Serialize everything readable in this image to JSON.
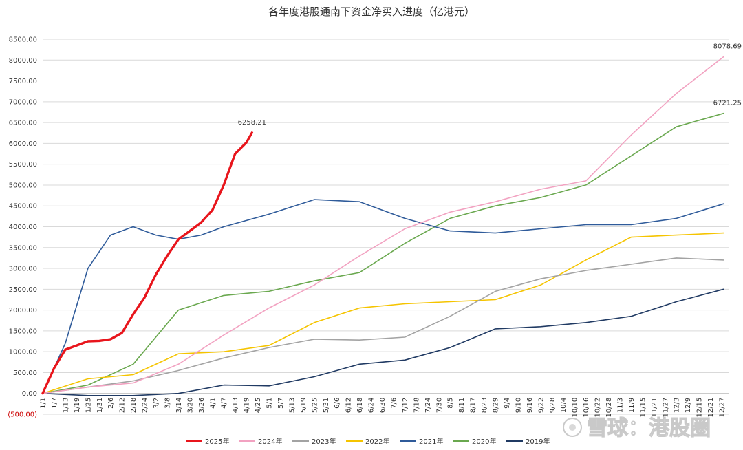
{
  "chart_data": {
    "type": "line",
    "title": "各年度港股通南下资金净买入进度（亿港元）",
    "xlabel": "",
    "ylabel": "",
    "ylim": [
      -500,
      8500
    ],
    "yticks": [
      "(500.00)",
      "0.00",
      "500.00",
      "1000.00",
      "1500.00",
      "2000.00",
      "2500.00",
      "3000.00",
      "3500.00",
      "4000.00",
      "4500.00",
      "5000.00",
      "5500.00",
      "6000.00",
      "6500.00",
      "7000.00",
      "7500.00",
      "8000.00",
      "8500.00"
    ],
    "ytick_values": [
      -500,
      0,
      500,
      1000,
      1500,
      2000,
      2500,
      3000,
      3500,
      4000,
      4500,
      5000,
      5500,
      6000,
      6500,
      7000,
      7500,
      8000,
      8500
    ],
    "xticks": [
      "1/1",
      "1/7",
      "1/13",
      "1/19",
      "1/25",
      "1/31",
      "2/6",
      "2/12",
      "2/18",
      "2/24",
      "3/2",
      "3/8",
      "3/14",
      "3/20",
      "3/26",
      "4/1",
      "4/7",
      "4/13",
      "4/19",
      "4/25",
      "5/1",
      "5/7",
      "5/13",
      "5/19",
      "5/25",
      "5/31",
      "6/6",
      "6/12",
      "6/18",
      "6/24",
      "6/30",
      "7/6",
      "7/12",
      "7/18",
      "7/24",
      "7/30",
      "8/5",
      "8/11",
      "8/17",
      "8/23",
      "8/29",
      "9/4",
      "9/10",
      "9/16",
      "9/22",
      "9/28",
      "10/4",
      "10/10",
      "10/16",
      "10/22",
      "10/28",
      "11/3",
      "11/9",
      "11/15",
      "11/21",
      "11/27",
      "12/3",
      "12/9",
      "12/15",
      "12/21",
      "12/27"
    ],
    "grid": true,
    "legend_position": "bottom",
    "series": [
      {
        "name": "2025年",
        "color": "#e8151c",
        "x": [
          1,
          7,
          13,
          19,
          25,
          31,
          37,
          43,
          49,
          55,
          61,
          67,
          73,
          79,
          85,
          91,
          97,
          103,
          109,
          112
        ],
        "values": [
          0,
          600,
          1050,
          1150,
          1250,
          1260,
          1300,
          1450,
          1900,
          2300,
          2850,
          3300,
          3700,
          3900,
          4100,
          4400,
          5000,
          5750,
          6020,
          6258.21
        ],
        "end_label": "6258.21"
      },
      {
        "name": "2024年",
        "color": "#f2a2c1",
        "x": [
          1,
          25,
          49,
          73,
          97,
          121,
          145,
          169,
          193,
          217,
          241,
          265,
          289,
          313,
          337,
          362
        ],
        "values": [
          0,
          150,
          250,
          700,
          1400,
          2050,
          2600,
          3300,
          3950,
          4350,
          4600,
          4900,
          5100,
          6200,
          7200,
          8078.69
        ],
        "end_label": "8078.69"
      },
      {
        "name": "2023年",
        "color": "#a3a3a3",
        "x": [
          1,
          25,
          49,
          73,
          97,
          121,
          145,
          169,
          193,
          217,
          241,
          265,
          289,
          313,
          337,
          362
        ],
        "values": [
          0,
          150,
          300,
          550,
          850,
          1100,
          1300,
          1280,
          1350,
          1850,
          2450,
          2750,
          2950,
          3100,
          3250,
          3200
        ]
      },
      {
        "name": "2022年",
        "color": "#f5c400",
        "x": [
          1,
          25,
          49,
          73,
          97,
          121,
          145,
          169,
          193,
          217,
          241,
          265,
          289,
          313,
          337,
          362
        ],
        "values": [
          0,
          350,
          450,
          950,
          1000,
          1150,
          1700,
          2050,
          2150,
          2200,
          2250,
          2600,
          3200,
          3750,
          3800,
          3850
        ]
      },
      {
        "name": "2021年",
        "color": "#2f5b9a",
        "x": [
          1,
          13,
          25,
          37,
          49,
          61,
          73,
          85,
          97,
          121,
          145,
          169,
          193,
          217,
          241,
          265,
          289,
          313,
          337,
          362
        ],
        "values": [
          0,
          1200,
          3000,
          3800,
          4000,
          3800,
          3700,
          3800,
          4000,
          4300,
          4650,
          4600,
          4200,
          3900,
          3850,
          3950,
          4050,
          4050,
          4200,
          4550
        ]
      },
      {
        "name": "2020年",
        "color": "#6aa84f",
        "x": [
          1,
          25,
          49,
          73,
          97,
          121,
          145,
          169,
          193,
          217,
          241,
          265,
          289,
          313,
          337,
          362
        ],
        "values": [
          0,
          200,
          700,
          2000,
          2350,
          2450,
          2700,
          2900,
          3600,
          4200,
          4500,
          4700,
          5000,
          5700,
          6400,
          6721.25
        ],
        "end_label": "6721.25"
      },
      {
        "name": "2019年",
        "color": "#203a63",
        "x": [
          1,
          25,
          49,
          73,
          97,
          121,
          145,
          169,
          193,
          217,
          241,
          265,
          289,
          313,
          337,
          362
        ],
        "values": [
          0,
          -50,
          -50,
          0,
          200,
          180,
          400,
          700,
          800,
          1100,
          1550,
          1600,
          1700,
          1850,
          2200,
          2500
        ]
      }
    ]
  },
  "watermark": {
    "text": "雪球：港股圈"
  }
}
